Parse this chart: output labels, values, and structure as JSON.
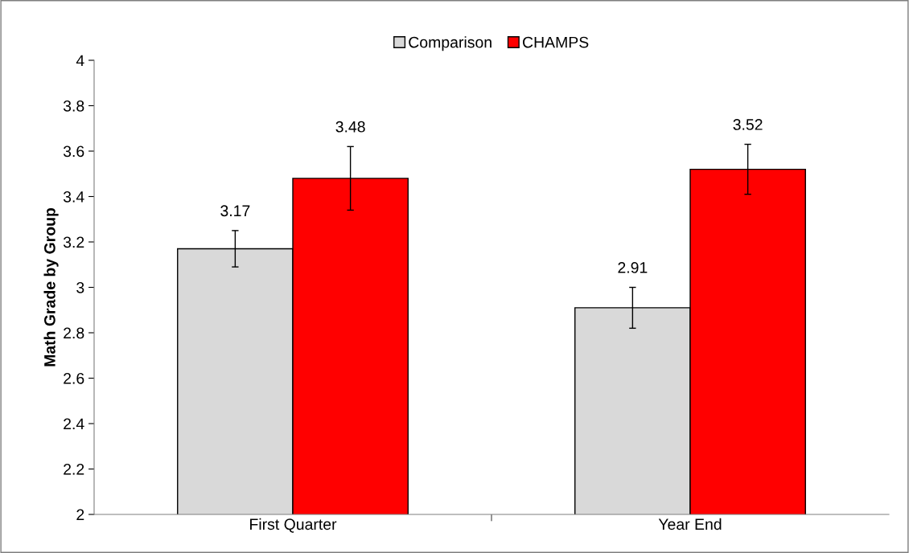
{
  "chart_data": {
    "type": "bar",
    "ylabel": "Math Grade by Group",
    "categories": [
      "First Quarter",
      "Year End"
    ],
    "series": [
      {
        "name": "Comparison",
        "color": "#d9d9d9",
        "values": [
          3.17,
          2.91
        ],
        "errors": [
          0.08,
          0.09
        ]
      },
      {
        "name": "CHAMPS",
        "color": "#ff0000",
        "values": [
          3.48,
          3.52
        ],
        "errors": [
          0.14,
          0.11
        ]
      }
    ],
    "ylim": [
      2,
      4
    ],
    "yticks": [
      2,
      2.2,
      2.4,
      2.6,
      2.8,
      3,
      3.2,
      3.4,
      3.6,
      3.8,
      4
    ],
    "data_labels": true,
    "grid": false,
    "legend": "top"
  }
}
